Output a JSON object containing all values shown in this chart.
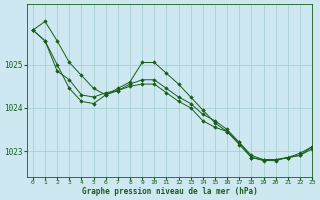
{
  "title": "Graphe pression niveau de la mer (hPa)",
  "background_color": "#cde8f0",
  "grid_color": "#a0cccc",
  "line_color": "#1a5c1a",
  "marker_color": "#1a5c1a",
  "xlim": [
    -0.5,
    23
  ],
  "ylim": [
    1022.4,
    1026.4
  ],
  "yticks": [
    1023,
    1024,
    1025
  ],
  "xticks": [
    0,
    1,
    2,
    3,
    4,
    5,
    6,
    7,
    8,
    9,
    10,
    11,
    12,
    13,
    14,
    15,
    16,
    17,
    18,
    19,
    20,
    21,
    22,
    23
  ],
  "series": [
    [
      1025.8,
      1026.0,
      1025.55,
      1025.05,
      1024.75,
      1024.45,
      1024.3,
      1024.45,
      1024.6,
      1025.05,
      1025.05,
      1024.8,
      1024.55,
      1024.25,
      1023.95,
      1023.65,
      1023.45,
      1023.15,
      1022.85,
      1022.78,
      1022.78,
      1022.85,
      1022.9,
      1023.05
    ],
    [
      1025.8,
      1025.55,
      1024.85,
      1024.65,
      1024.3,
      1024.25,
      1024.35,
      1024.4,
      1024.55,
      1024.65,
      1024.65,
      1024.45,
      1024.25,
      1024.1,
      1023.85,
      1023.7,
      1023.5,
      1023.2,
      1022.9,
      1022.8,
      1022.8,
      1022.85,
      1022.95,
      1023.1
    ],
    [
      1025.8,
      1025.55,
      1025.0,
      1024.45,
      1024.15,
      1024.1,
      1024.3,
      1024.4,
      1024.5,
      1024.55,
      1024.55,
      1024.35,
      1024.15,
      1024.0,
      1023.7,
      1023.55,
      1023.45,
      1023.2,
      1022.85,
      1022.8,
      1022.8,
      1022.85,
      1022.9,
      1023.1
    ]
  ]
}
